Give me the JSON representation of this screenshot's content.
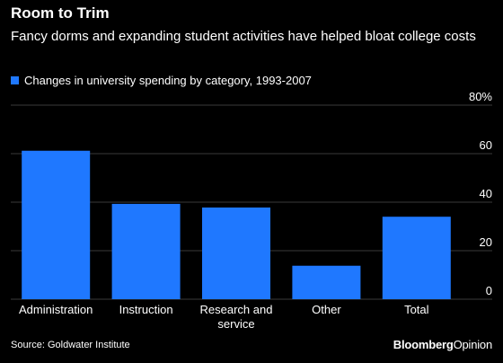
{
  "header": {
    "title": "Room to Trim",
    "subtitle": "Fancy dorms and expanding student activities have helped bloat college costs"
  },
  "legend": {
    "label": "Changes in university spending by category, 1993-2007",
    "color": "#1f78ff"
  },
  "chart_data": {
    "type": "bar",
    "title": "Room to Trim",
    "subtitle": "Fancy dorms and expanding student activities have helped bloat college costs",
    "categories": [
      "Administration",
      "Instruction",
      "Research and service",
      "Other",
      "Total"
    ],
    "category_lines": [
      [
        "Administration"
      ],
      [
        "Instruction"
      ],
      [
        "Research and",
        "service"
      ],
      [
        "Other"
      ],
      [
        "Total"
      ]
    ],
    "series": [
      {
        "name": "Changes in university spending by category, 1993-2007",
        "values": [
          61.2,
          39.3,
          37.8,
          13.8,
          34.0
        ]
      }
    ],
    "yticks": [
      "0",
      "20",
      "40",
      "60",
      "80%"
    ],
    "ytick_values": [
      0,
      20,
      40,
      60,
      80
    ],
    "ylim": [
      0,
      80
    ],
    "y_axis_side": "right",
    "grid": true,
    "bar_color": "#1f78ff",
    "grid_color": "#3a3a3a"
  },
  "footer": {
    "source": "Source: Goldwater Institute",
    "brand_main": "Bloomberg",
    "brand_sub": "Opinion"
  }
}
